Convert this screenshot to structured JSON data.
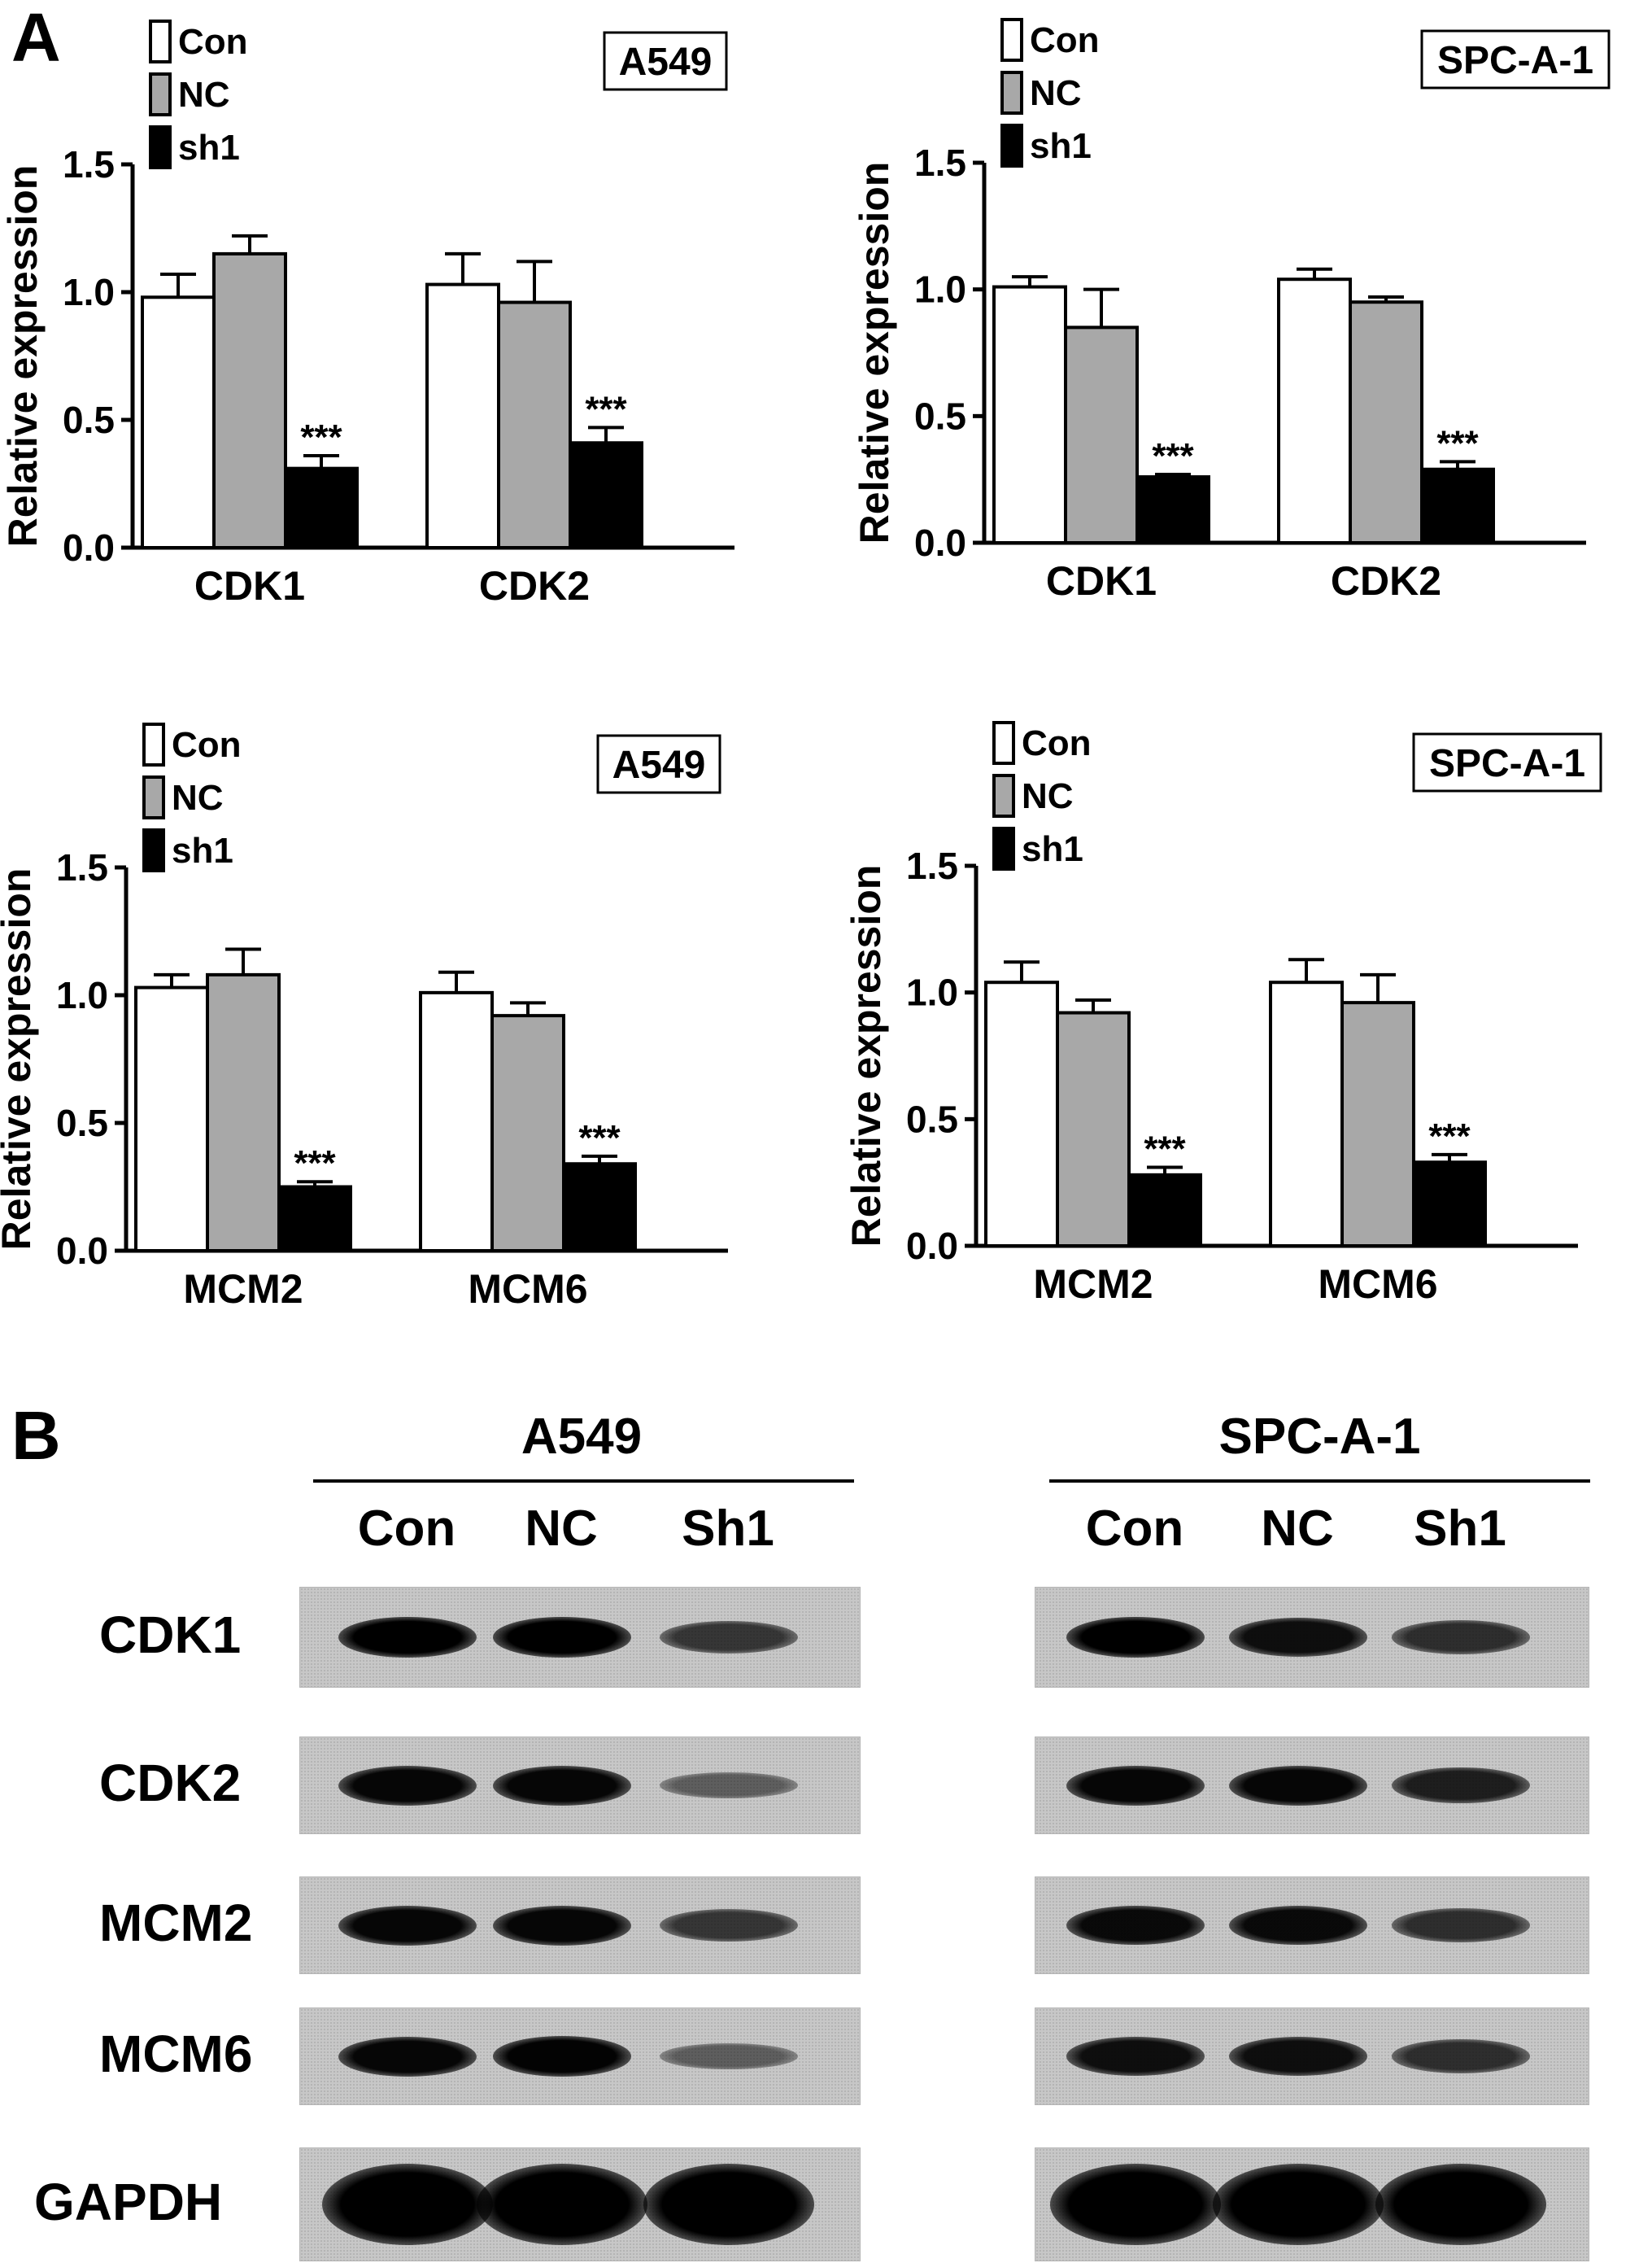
{
  "panels": {
    "a": "A",
    "b": "B"
  },
  "colors": {
    "con": "#ffffff",
    "nc": "#a8a8a8",
    "sh1": "#000000"
  },
  "chart_data": [
    {
      "type": "bar",
      "cell_line": "A549",
      "ylabel": "Relative expression",
      "ylim": [
        0,
        1.5
      ],
      "yticks": [
        "0.0",
        "0.5",
        "1.0",
        "1.5"
      ],
      "categories": [
        "CDK1",
        "CDK2"
      ],
      "legend": [
        "Con",
        "NC",
        "sh1"
      ],
      "legend_position": "top-left",
      "series": [
        {
          "name": "Con",
          "values": [
            0.98,
            1.03
          ],
          "errors": [
            0.09,
            0.12
          ]
        },
        {
          "name": "NC",
          "values": [
            1.15,
            0.96
          ],
          "errors": [
            0.07,
            0.16
          ]
        },
        {
          "name": "sh1",
          "values": [
            0.31,
            0.41
          ],
          "errors": [
            0.05,
            0.06
          ]
        }
      ],
      "annotations": [
        "***",
        "***"
      ]
    },
    {
      "type": "bar",
      "cell_line": "SPC-A-1",
      "ylabel": "Relative expression",
      "ylim": [
        0,
        1.5
      ],
      "yticks": [
        "0.0",
        "0.5",
        "1.0",
        "1.5"
      ],
      "categories": [
        "CDK1",
        "CDK2"
      ],
      "legend": [
        "Con",
        "NC",
        "sh1"
      ],
      "legend_position": "top-left",
      "series": [
        {
          "name": "Con",
          "values": [
            1.01,
            1.04
          ],
          "errors": [
            0.04,
            0.04
          ]
        },
        {
          "name": "NC",
          "values": [
            0.85,
            0.95
          ],
          "errors": [
            0.15,
            0.02
          ]
        },
        {
          "name": "sh1",
          "values": [
            0.26,
            0.29
          ],
          "errors": [
            0.01,
            0.03
          ]
        }
      ],
      "annotations": [
        "***",
        "***"
      ]
    },
    {
      "type": "bar",
      "cell_line": "A549",
      "ylabel": "Relative expression",
      "ylim": [
        0,
        1.5
      ],
      "yticks": [
        "0.0",
        "0.5",
        "1.0",
        "1.5"
      ],
      "categories": [
        "MCM2",
        "MCM6"
      ],
      "legend": [
        "Con",
        "NC",
        "sh1"
      ],
      "legend_position": "top-left",
      "series": [
        {
          "name": "Con",
          "values": [
            1.03,
            1.01
          ],
          "errors": [
            0.05,
            0.08
          ]
        },
        {
          "name": "NC",
          "values": [
            1.08,
            0.92
          ],
          "errors": [
            0.1,
            0.05
          ]
        },
        {
          "name": "sh1",
          "values": [
            0.25,
            0.34
          ],
          "errors": [
            0.02,
            0.03
          ]
        }
      ],
      "annotations": [
        "***",
        "***"
      ]
    },
    {
      "type": "bar",
      "cell_line": "SPC-A-1",
      "ylabel": "Relative expression",
      "ylim": [
        0,
        1.5
      ],
      "yticks": [
        "0.0",
        "0.5",
        "1.0",
        "1.5"
      ],
      "categories": [
        "MCM2",
        "MCM6"
      ],
      "legend": [
        "Con",
        "NC",
        "sh1"
      ],
      "legend_position": "top-left",
      "series": [
        {
          "name": "Con",
          "values": [
            1.04,
            1.04
          ],
          "errors": [
            0.08,
            0.09
          ]
        },
        {
          "name": "NC",
          "values": [
            0.92,
            0.96
          ],
          "errors": [
            0.05,
            0.11
          ]
        },
        {
          "name": "sh1",
          "values": [
            0.28,
            0.33
          ],
          "errors": [
            0.03,
            0.03
          ]
        }
      ],
      "annotations": [
        "***",
        "***"
      ]
    }
  ],
  "western_blot": {
    "rows": [
      "CDK1",
      "CDK2",
      "MCM2",
      "MCM6",
      "GAPDH"
    ],
    "blots": [
      {
        "title": "A549",
        "lanes": [
          "Con",
          "NC",
          "Sh1"
        ],
        "intensity": [
          [
            0.95,
            0.95,
            0.6
          ],
          [
            0.9,
            0.9,
            0.35
          ],
          [
            0.9,
            0.9,
            0.6
          ],
          [
            0.9,
            0.92,
            0.35
          ],
          [
            1.0,
            1.0,
            1.0
          ]
        ]
      },
      {
        "title": "SPC-A-1",
        "lanes": [
          "Con",
          "NC",
          "Sh1"
        ],
        "intensity": [
          [
            0.95,
            0.85,
            0.65
          ],
          [
            0.9,
            0.9,
            0.75
          ],
          [
            0.88,
            0.88,
            0.65
          ],
          [
            0.85,
            0.85,
            0.65
          ],
          [
            1.0,
            1.0,
            1.0
          ]
        ]
      }
    ]
  }
}
